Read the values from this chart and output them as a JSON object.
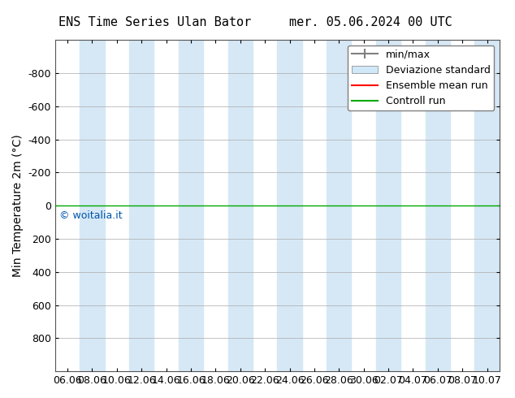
{
  "title_left": "ENS Time Series Ulan Bator",
  "title_right": "mer. 05.06.2024 00 UTC",
  "ylabel": "Min Temperature 2m (°C)",
  "ylim": [
    1000,
    -1000
  ],
  "yticks": [
    1000,
    800,
    600,
    400,
    200,
    0,
    -200,
    -400,
    -600,
    -800,
    -1000
  ],
  "xtick_labels": [
    "06.06",
    "08.06",
    "10.06",
    "12.06",
    "14.06",
    "16.06",
    "18.06",
    "20.06",
    "22.06",
    "24.06",
    "26.06",
    "28.06",
    "30.06",
    "02.07",
    "04.07",
    "06.07",
    "08.07",
    "10.07"
  ],
  "blue_band_color": "#d6e8f5",
  "blue_band_positions": [
    1,
    3,
    5,
    7,
    9,
    11,
    13,
    15,
    17
  ],
  "green_line_y": 0,
  "green_line_color": "#00aa00",
  "red_line_color": "#ff0000",
  "legend_labels": [
    "min/max",
    "Deviazione standard",
    "Ensemble mean run",
    "Controll run"
  ],
  "watermark": "© woitalia.it",
  "watermark_color": "#0055aa",
  "background_color": "#ffffff",
  "font_size": 10,
  "title_font_size": 11
}
